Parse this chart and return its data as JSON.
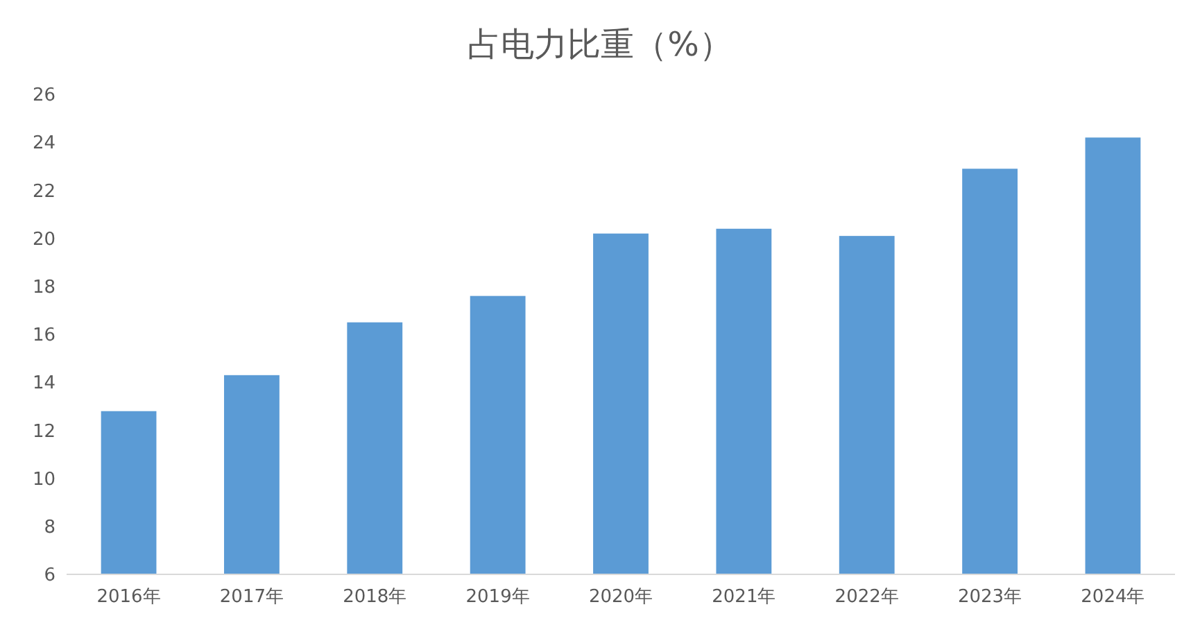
{
  "chart_data": {
    "type": "bar",
    "title": "占电力比重（%）",
    "categories": [
      "2016年",
      "2017年",
      "2018年",
      "2019年",
      "2020年",
      "2021年",
      "2022年",
      "2023年",
      "2024年"
    ],
    "values": [
      12.8,
      14.3,
      16.5,
      17.6,
      20.2,
      20.4,
      20.1,
      22.9,
      24.2
    ],
    "color": "#5b9bd5",
    "ylim": [
      6,
      26
    ],
    "yticks": [
      6,
      8,
      10,
      12,
      14,
      16,
      18,
      20,
      22,
      24,
      26
    ],
    "grid": false
  }
}
